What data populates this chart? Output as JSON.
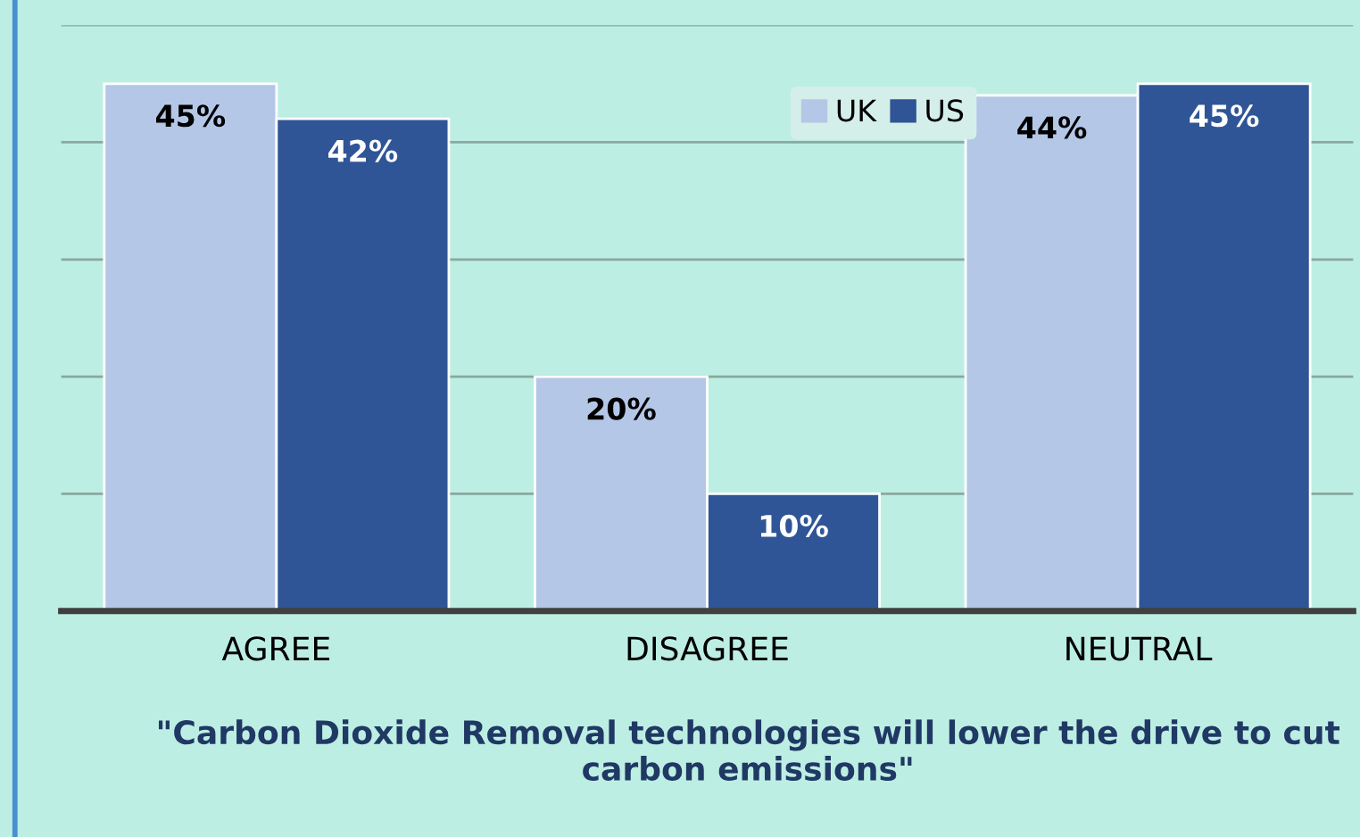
{
  "chart_data": {
    "type": "bar",
    "title": "\"Carbon Dioxide Removal technologies will lower the drive to cut carbon emissions\"",
    "categories": [
      "AGREE",
      "DISAGREE",
      "NEUTRAL"
    ],
    "series": [
      {
        "name": "UK",
        "color": "#b4c7e7",
        "values": [
          45,
          20,
          44
        ],
        "value_labels": [
          "45%",
          "20%",
          "44%"
        ]
      },
      {
        "name": "US",
        "color": "#2f5597",
        "values": [
          42,
          10,
          45
        ],
        "value_labels": [
          "42%",
          "10%",
          "45%"
        ]
      }
    ],
    "ylim": [
      0,
      50
    ],
    "yticks": [
      {
        "value": 0,
        "label": null
      },
      {
        "value": 10,
        "label": null
      },
      {
        "value": 20,
        "label": null
      },
      {
        "value": 30,
        "label": null
      },
      {
        "value": 40,
        "label": null
      },
      {
        "value": 50,
        "label": null
      }
    ],
    "tick_labels": "x",
    "grid": "y",
    "legend": "top right"
  }
}
